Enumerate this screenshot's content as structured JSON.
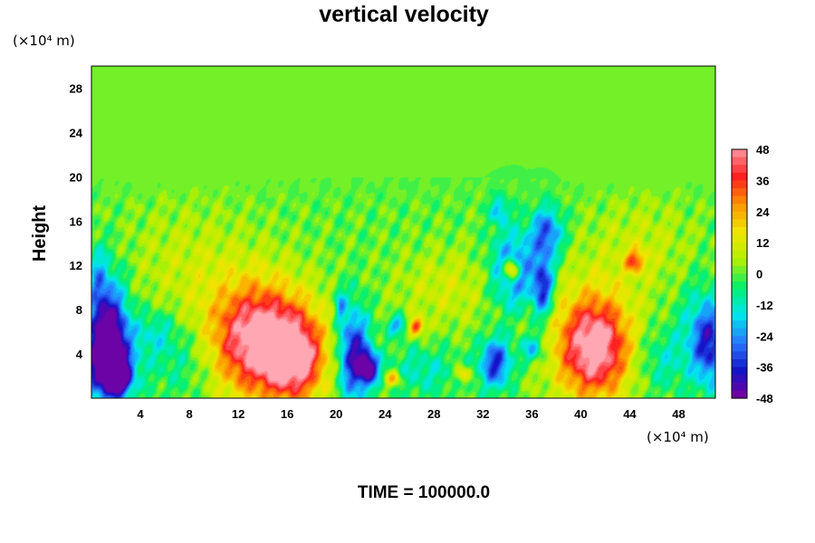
{
  "chart_data": {
    "type": "heatmap",
    "title": "vertical velocity",
    "xlabel": "",
    "ylabel": "Height",
    "x_unit": "(×10⁴ m)",
    "y_unit": "(×10⁴ m)",
    "xlim": [
      0,
      51
    ],
    "ylim": [
      0,
      30
    ],
    "x_ticks": [
      4,
      8,
      12,
      16,
      20,
      24,
      28,
      32,
      36,
      40,
      44,
      48
    ],
    "y_ticks": [
      4,
      8,
      12,
      16,
      20,
      24,
      28
    ],
    "colorbar": {
      "min": -48,
      "max": 48,
      "ticks": [
        48,
        36,
        24,
        12,
        0,
        -12,
        -24,
        -36,
        -48
      ]
    },
    "colormap": [
      "#7a00a0",
      "#1414c8",
      "#2878ff",
      "#00e6f0",
      "#00f06e",
      "#b4f000",
      "#f0e600",
      "#ff9600",
      "#ff1e1e",
      "#ff96a0"
    ],
    "background_value": 0,
    "blobs": [
      {
        "x": 1.3,
        "y": 5.8,
        "sx": 1.1,
        "sy": 3.6,
        "v": -46
      },
      {
        "x": 1.2,
        "y": 3.5,
        "sx": 1.6,
        "sy": 2.5,
        "v": -30
      },
      {
        "x": 2.2,
        "y": 2.0,
        "sx": 0.7,
        "sy": 1.0,
        "v": -46
      },
      {
        "x": 0.5,
        "y": 11.0,
        "sx": 0.5,
        "sy": 2.0,
        "v": -14
      },
      {
        "x": 5.2,
        "y": 6.0,
        "sx": 1.2,
        "sy": 1.5,
        "v": -12
      },
      {
        "x": 13.6,
        "y": 5.4,
        "sx": 2.6,
        "sy": 3.2,
        "v": 42
      },
      {
        "x": 16.6,
        "y": 3.6,
        "sx": 1.6,
        "sy": 2.5,
        "v": 38
      },
      {
        "x": 14.4,
        "y": 4.8,
        "sx": 3.8,
        "sy": 4.5,
        "v": 14
      },
      {
        "x": 21.4,
        "y": 4.0,
        "sx": 0.9,
        "sy": 3.0,
        "v": -42
      },
      {
        "x": 22.6,
        "y": 2.8,
        "sx": 0.6,
        "sy": 1.0,
        "v": -44
      },
      {
        "x": 20.3,
        "y": 8.6,
        "sx": 0.3,
        "sy": 1.1,
        "v": -20
      },
      {
        "x": 25.0,
        "y": 6.6,
        "sx": 0.6,
        "sy": 0.6,
        "v": -24
      },
      {
        "x": 26.5,
        "y": 6.5,
        "sx": 0.45,
        "sy": 0.55,
        "v": 36
      },
      {
        "x": 24.6,
        "y": 1.8,
        "sx": 0.5,
        "sy": 0.5,
        "v": 24
      },
      {
        "x": 30.3,
        "y": 2.2,
        "sx": 0.4,
        "sy": 0.5,
        "v": 22
      },
      {
        "x": 33.0,
        "y": 3.2,
        "sx": 0.9,
        "sy": 1.6,
        "v": -36
      },
      {
        "x": 36.0,
        "y": 4.5,
        "sx": 0.7,
        "sy": 0.9,
        "v": -22
      },
      {
        "x": 34.3,
        "y": 11.6,
        "sx": 0.5,
        "sy": 0.75,
        "v": 40
      },
      {
        "x": 34.5,
        "y": 11.5,
        "sx": 1.3,
        "sy": 2.4,
        "v": -32
      },
      {
        "x": 36.9,
        "y": 10.0,
        "sx": 0.6,
        "sy": 2.0,
        "v": -36
      },
      {
        "x": 37.2,
        "y": 15.0,
        "sx": 0.9,
        "sy": 1.6,
        "v": -30
      },
      {
        "x": 33.3,
        "y": 17.0,
        "sx": 0.5,
        "sy": 0.9,
        "v": -20
      },
      {
        "x": 41.1,
        "y": 4.6,
        "sx": 1.9,
        "sy": 3.0,
        "v": 46
      },
      {
        "x": 40.5,
        "y": 5.5,
        "sx": 3.2,
        "sy": 4.5,
        "v": 12
      },
      {
        "x": 44.4,
        "y": 12.4,
        "sx": 0.55,
        "sy": 0.7,
        "v": 28
      },
      {
        "x": 50.6,
        "y": 4.8,
        "sx": 0.9,
        "sy": 2.6,
        "v": -30
      },
      {
        "x": 49.5,
        "y": 6.0,
        "sx": 1.2,
        "sy": 3.0,
        "v": -14
      },
      {
        "x": 29.0,
        "y": 10.0,
        "sx": 3.0,
        "sy": 2.5,
        "v": 10
      },
      {
        "x": 8.0,
        "y": 12.0,
        "sx": 4.0,
        "sy": 4.0,
        "v": 8
      },
      {
        "x": 45.0,
        "y": 14.0,
        "sx": 3.0,
        "sy": 3.0,
        "v": 8
      },
      {
        "x": 27.0,
        "y": 2.5,
        "sx": 2.0,
        "sy": 1.5,
        "v": -12
      },
      {
        "x": 7.5,
        "y": 3.5,
        "sx": 2.0,
        "sy": 2.5,
        "v": -10
      },
      {
        "x": 46.5,
        "y": 3.5,
        "sx": 1.5,
        "sy": 2.0,
        "v": -12
      }
    ]
  },
  "footer": {
    "time_text": "TIME = 100000.0"
  }
}
